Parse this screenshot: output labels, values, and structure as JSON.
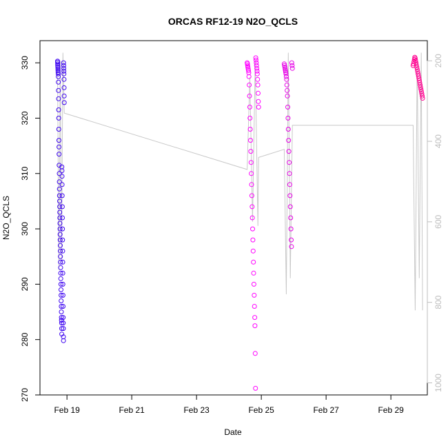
{
  "chart_data": {
    "type": "scatter",
    "title": "ORCAS RF12-19 N2O_QCLS",
    "xlabel": "Date",
    "ylabel": "N2O_QCLS",
    "xlim": [
      "2016-02-18 04:00",
      "2016-03-01 03:00"
    ],
    "ylim": [
      270,
      334
    ],
    "y2lim": [
      1030,
      150
    ],
    "x_ticks": [
      {
        "date": "2016-02-19",
        "label": "Feb 19"
      },
      {
        "date": "2016-02-21",
        "label": "Feb 21"
      },
      {
        "date": "2016-02-23",
        "label": "Feb 23"
      },
      {
        "date": "2016-02-25",
        "label": "Feb 25"
      },
      {
        "date": "2016-02-27",
        "label": "Feb 27"
      },
      {
        "date": "2016-02-29",
        "label": "Feb 29"
      }
    ],
    "y_ticks": [
      270,
      280,
      290,
      300,
      310,
      320,
      330
    ],
    "y2_ticks": [
      200,
      400,
      600,
      800,
      1000
    ],
    "grid": false,
    "legend": "none",
    "colors": {
      "flight1": "#3a00f0",
      "flight2": "#ff00ff",
      "flight3": "#e600e6",
      "flight4": "#ff0090",
      "pressure": "#c8c8c8",
      "axis": "#000000",
      "axis2": "#bdbdbd"
    },
    "series": [
      {
        "x_range": [
          "2016-02-18 17:00",
          "2016-02-18 22:00"
        ],
        "color_key": "flight1",
        "values": [
          330.3,
          330.1,
          329.8,
          329.5,
          329.2,
          328.9,
          328.6,
          328.3,
          328.0,
          327.5,
          326.5,
          325.0,
          323.5,
          321.5,
          320.0,
          318.0,
          316.0,
          314.8,
          313.5,
          311.5,
          310.0,
          308.5,
          307.2,
          306.0,
          305.0,
          304.0,
          303.0,
          302.0,
          301.0,
          300.0,
          299.0,
          298.0,
          297.0,
          296.0,
          295.0,
          294.0,
          293.0,
          292.0,
          291.0,
          290.0,
          289.0,
          288.0,
          287.0,
          286.0,
          285.0,
          284.0,
          283.5,
          283.0,
          282.0,
          281.0,
          311.2,
          310.5,
          309.5,
          308.0,
          306.0,
          304.0,
          302.0,
          300.0,
          298.0,
          296.0,
          294.0,
          292.0,
          290.0,
          288.0,
          286.0,
          284.0,
          283.0,
          282.0,
          280.5,
          279.8,
          330.0,
          329.5,
          329.0,
          328.5,
          328.0,
          327.0,
          325.5,
          324.0,
          322.8
        ]
      },
      {
        "x_range": [
          "2016-02-24 13:30",
          "2016-02-24 22:00"
        ],
        "color_key": "flight2",
        "values": [
          330.0,
          329.8,
          329.5,
          329.2,
          328.9,
          328.6,
          328.2,
          327.5,
          326.0,
          324.0,
          322.0,
          320.0,
          318.0,
          316.0,
          314.0,
          312.0,
          310.0,
          308.0,
          306.0,
          304.0,
          302.0,
          300.0,
          298.0,
          296.0,
          294.0,
          292.0,
          290.0,
          288.0,
          286.0,
          284.0,
          282.5,
          277.5,
          271.2,
          330.9,
          330.5,
          330.0,
          329.5,
          329.0,
          328.5,
          328.0,
          327.0,
          326.0,
          324.5,
          323.0,
          322.0
        ]
      },
      {
        "x_range": [
          "2016-02-25 17:00",
          "2016-02-25 23:00"
        ],
        "color_key": "flight3",
        "values": [
          329.8,
          329.5,
          329.2,
          328.9,
          328.6,
          328.3,
          328.0,
          327.5,
          327.0,
          326.0,
          325.0,
          324.0,
          322.0,
          320.0,
          318.0,
          316.0,
          314.0,
          312.0,
          310.0,
          308.0,
          306.0,
          304.0,
          302.0,
          300.0,
          298.0,
          296.8,
          330.0,
          329.5,
          329.0
        ]
      },
      {
        "x_range": [
          "2016-02-29 16:30",
          "2016-02-29 23:30"
        ],
        "color_key": "flight4",
        "values": [
          329.5,
          329.8,
          330.2,
          330.6,
          331.0,
          330.8,
          330.4,
          330.0,
          329.6,
          329.2,
          328.8,
          328.4,
          328.0,
          327.6,
          327.2,
          326.8,
          326.4,
          326.0,
          325.6,
          325.2,
          324.8,
          324.4,
          324.0,
          323.6
        ]
      }
    ],
    "pressure_line": {
      "axis": "right",
      "x": [
        "2016-02-18 17:00",
        "2016-02-18 18:00",
        "2016-02-18 19:00",
        "2016-02-18 20:00",
        "2016-02-18 21:00",
        "2016-02-18 22:00",
        "2016-02-24 13:30",
        "2016-02-24 15:30",
        "2016-02-24 17:30",
        "2016-02-24 19:30",
        "2016-02-24 21:30",
        "2016-02-24 22:00",
        "2016-02-25 17:00",
        "2016-02-25 18:30",
        "2016-02-25 20:00",
        "2016-02-25 21:30",
        "2016-02-25 23:00",
        "2016-02-29 16:30",
        "2016-02-29 18:00",
        "2016-02-29 19:30",
        "2016-02-29 21:00",
        "2016-02-29 22:30",
        "2016-02-29 23:30"
      ],
      "values": [
        220,
        720,
        200,
        700,
        180,
        330,
        470,
        240,
        600,
        200,
        610,
        440,
        420,
        780,
        180,
        740,
        360,
        360,
        820,
        200,
        740,
        180,
        820
      ]
    }
  }
}
